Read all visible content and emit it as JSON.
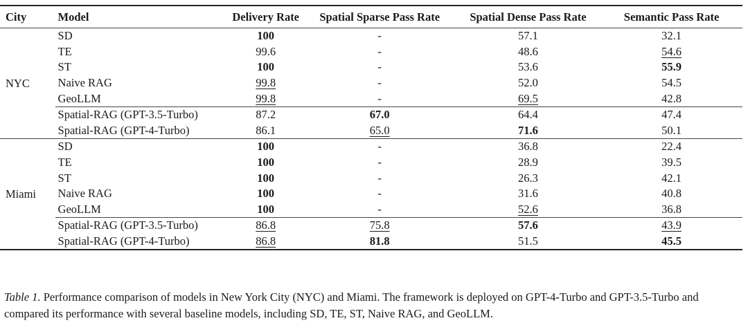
{
  "headers": [
    "City",
    "Model",
    "Delivery Rate",
    "Spatial Sparse Pass Rate",
    "Spatial Dense Pass Rate",
    "Semantic Pass Rate"
  ],
  "groups": [
    {
      "city": "NYC",
      "rows": [
        {
          "model": "SD",
          "cells": [
            {
              "v": "100",
              "b": true
            },
            {
              "v": "-"
            },
            {
              "v": "57.1"
            },
            {
              "v": "32.1"
            }
          ]
        },
        {
          "model": "TE",
          "cells": [
            {
              "v": "99.6"
            },
            {
              "v": "-"
            },
            {
              "v": "48.6"
            },
            {
              "v": "54.6",
              "u": true
            }
          ]
        },
        {
          "model": "ST",
          "cells": [
            {
              "v": "100",
              "b": true
            },
            {
              "v": "-"
            },
            {
              "v": "53.6"
            },
            {
              "v": "55.9",
              "b": true
            }
          ]
        },
        {
          "model": "Naive RAG",
          "cells": [
            {
              "v": "99.8",
              "u": true
            },
            {
              "v": "-"
            },
            {
              "v": "52.0"
            },
            {
              "v": "54.5"
            }
          ]
        },
        {
          "model": "GeoLLM",
          "cells": [
            {
              "v": "99.8",
              "u": true
            },
            {
              "v": "-"
            },
            {
              "v": "69.5",
              "u": true
            },
            {
              "v": "42.8"
            }
          ]
        },
        {
          "model": "Spatial-RAG (GPT-3.5-Turbo)",
          "sep": true,
          "cells": [
            {
              "v": "87.2"
            },
            {
              "v": "67.0",
              "b": true
            },
            {
              "v": "64.4"
            },
            {
              "v": "47.4"
            }
          ]
        },
        {
          "model": "Spatial-RAG (GPT-4-Turbo)",
          "cells": [
            {
              "v": "86.1"
            },
            {
              "v": "65.0",
              "u": true
            },
            {
              "v": "71.6",
              "b": true
            },
            {
              "v": "50.1"
            }
          ]
        }
      ]
    },
    {
      "city": "Miami",
      "rows": [
        {
          "model": "SD",
          "cells": [
            {
              "v": "100",
              "b": true
            },
            {
              "v": "-"
            },
            {
              "v": "36.8"
            },
            {
              "v": "22.4"
            }
          ]
        },
        {
          "model": "TE",
          "cells": [
            {
              "v": "100",
              "b": true
            },
            {
              "v": "-"
            },
            {
              "v": "28.9"
            },
            {
              "v": "39.5"
            }
          ]
        },
        {
          "model": "ST",
          "cells": [
            {
              "v": "100",
              "b": true
            },
            {
              "v": "-"
            },
            {
              "v": "26.3"
            },
            {
              "v": "42.1"
            }
          ]
        },
        {
          "model": "Naive RAG",
          "cells": [
            {
              "v": "100",
              "b": true
            },
            {
              "v": "-"
            },
            {
              "v": "31.6"
            },
            {
              "v": "40.8"
            }
          ]
        },
        {
          "model": "GeoLLM",
          "cells": [
            {
              "v": "100",
              "b": true
            },
            {
              "v": "-"
            },
            {
              "v": "52.6",
              "u": true
            },
            {
              "v": "36.8"
            }
          ]
        },
        {
          "model": "Spatial-RAG (GPT-3.5-Turbo)",
          "sep": true,
          "cells": [
            {
              "v": "86.8",
              "u": true
            },
            {
              "v": "75.8",
              "u": true
            },
            {
              "v": "57.6",
              "b": true
            },
            {
              "v": "43.9",
              "u": true
            }
          ]
        },
        {
          "model": "Spatial-RAG (GPT-4-Turbo)",
          "cells": [
            {
              "v": "86.8",
              "u": true
            },
            {
              "v": "81.8",
              "b": true
            },
            {
              "v": "51.5"
            },
            {
              "v": "45.5",
              "b": true
            }
          ]
        }
      ]
    }
  ],
  "caption": {
    "label": "Table 1.",
    "text": " Performance comparison of models in New York City (NYC) and Miami. The framework is deployed on GPT-4-Turbo and GPT-3.5-Turbo and compared its performance with several baseline models, including SD, TE, ST, Naive RAG, and GeoLLM."
  }
}
